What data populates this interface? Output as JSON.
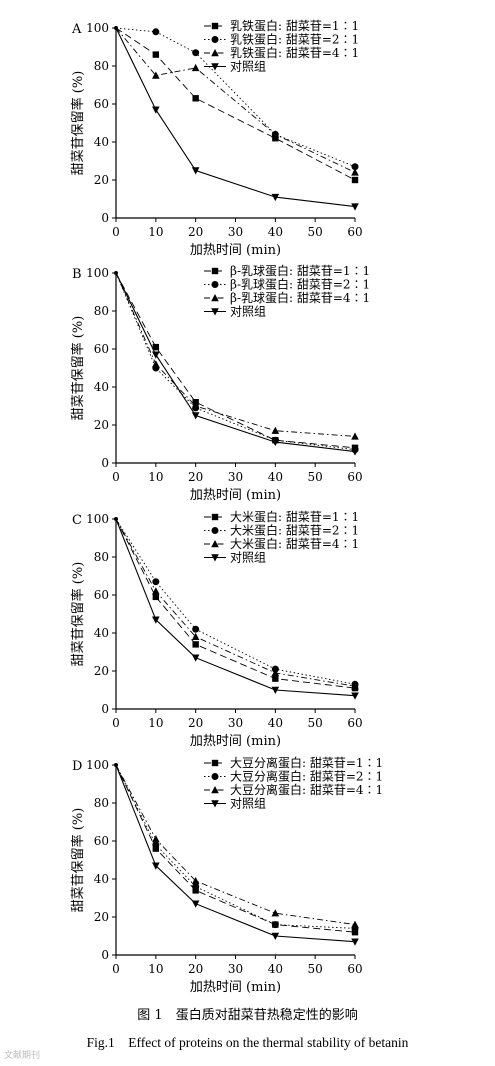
{
  "figure": {
    "caption_cn": "图 1　蛋白质对甜菜苷热稳定性的影响",
    "caption_en": "Fig.1　Effect of proteins on the thermal stability of betanin",
    "watermark": "文献期刊"
  },
  "chart_data": [
    {
      "type": "line",
      "panel": "A",
      "xlabel": "加热时间 (min)",
      "ylabel": "甜菜苷保留率 (%)",
      "x": [
        0,
        10,
        20,
        40,
        60
      ],
      "xticks": [
        "0",
        "10",
        "20",
        "30",
        "40",
        "50",
        "60"
      ],
      "yticks": [
        "0",
        "20",
        "40",
        "60",
        "80",
        "100"
      ],
      "xlim": [
        0,
        60
      ],
      "ylim": [
        0,
        100
      ],
      "grid": false,
      "legend_position": "top-right",
      "series": [
        {
          "name": "乳铁蛋白: 甜菜苷=1∶1",
          "values": [
            100,
            86,
            63,
            42,
            20
          ],
          "marker": "square",
          "dash": "dash"
        },
        {
          "name": "乳铁蛋白: 甜菜苷=2∶1",
          "values": [
            100,
            98,
            87,
            44,
            27
          ],
          "marker": "circle",
          "dash": "dot"
        },
        {
          "name": "乳铁蛋白: 甜菜苷=4∶1",
          "values": [
            100,
            75,
            79,
            44,
            24
          ],
          "marker": "triangle",
          "dash": "dashdot"
        },
        {
          "name": "对照组",
          "values": [
            100,
            57,
            25,
            11,
            6
          ],
          "marker": "triangle-down",
          "dash": "solid"
        }
      ]
    },
    {
      "type": "line",
      "panel": "B",
      "xlabel": "加热时间 (min)",
      "ylabel": "甜菜苷保留率 (%)",
      "x": [
        0,
        10,
        20,
        40,
        60
      ],
      "xticks": [
        "0",
        "10",
        "20",
        "30",
        "40",
        "50",
        "60"
      ],
      "yticks": [
        "0",
        "20",
        "40",
        "60",
        "80",
        "100"
      ],
      "xlim": [
        0,
        60
      ],
      "ylim": [
        0,
        100
      ],
      "grid": false,
      "legend_position": "top-right",
      "series": [
        {
          "name": "β-乳球蛋白: 甜菜苷=1∶1",
          "values": [
            100,
            61,
            32,
            12,
            8
          ],
          "marker": "square",
          "dash": "dash"
        },
        {
          "name": "β-乳球蛋白: 甜菜苷=2∶1",
          "values": [
            100,
            50,
            29,
            12,
            7
          ],
          "marker": "circle",
          "dash": "dot"
        },
        {
          "name": "β-乳球蛋白: 甜菜苷=4∶1",
          "values": [
            100,
            52,
            30,
            17,
            14
          ],
          "marker": "triangle",
          "dash": "dashdot"
        },
        {
          "name": "对照组",
          "values": [
            100,
            57,
            25,
            11,
            6
          ],
          "marker": "triangle-down",
          "dash": "solid"
        }
      ]
    },
    {
      "type": "line",
      "panel": "C",
      "xlabel": "加热时间 (min)",
      "ylabel": "甜菜苷保留率 (%)",
      "x": [
        0,
        10,
        20,
        40,
        60
      ],
      "xticks": [
        "0",
        "10",
        "20",
        "30",
        "40",
        "50",
        "60"
      ],
      "yticks": [
        "0",
        "20",
        "40",
        "60",
        "80",
        "100"
      ],
      "xlim": [
        0,
        60
      ],
      "ylim": [
        0,
        100
      ],
      "grid": false,
      "legend_position": "top-right",
      "series": [
        {
          "name": "大米蛋白: 甜菜苷=1∶1",
          "values": [
            100,
            59,
            34,
            16,
            11
          ],
          "marker": "square",
          "dash": "dash"
        },
        {
          "name": "大米蛋白: 甜菜苷=2∶1",
          "values": [
            100,
            67,
            42,
            21,
            13
          ],
          "marker": "circle",
          "dash": "dot"
        },
        {
          "name": "大米蛋白: 甜菜苷=4∶1",
          "values": [
            100,
            62,
            38,
            19,
            12
          ],
          "marker": "triangle",
          "dash": "dashdot"
        },
        {
          "name": "对照组",
          "values": [
            100,
            47,
            27,
            10,
            7
          ],
          "marker": "triangle-down",
          "dash": "solid"
        }
      ]
    },
    {
      "type": "line",
      "panel": "D",
      "xlabel": "加热时间 (min)",
      "ylabel": "甜菜苷保留率 (%)",
      "x": [
        0,
        10,
        20,
        40,
        60
      ],
      "xticks": [
        "0",
        "10",
        "20",
        "30",
        "40",
        "50",
        "60"
      ],
      "yticks": [
        "0",
        "20",
        "40",
        "60",
        "80",
        "100"
      ],
      "xlim": [
        0,
        60
      ],
      "ylim": [
        0,
        100
      ],
      "grid": false,
      "legend_position": "top-right",
      "series": [
        {
          "name": "大豆分离蛋白: 甜菜苷=1∶1",
          "values": [
            100,
            56,
            34,
            16,
            12
          ],
          "marker": "square",
          "dash": "dash"
        },
        {
          "name": "大豆分离蛋白: 甜菜苷=2∶1",
          "values": [
            100,
            58,
            36,
            16,
            14
          ],
          "marker": "circle",
          "dash": "dot"
        },
        {
          "name": "大豆分离蛋白: 甜菜苷=4∶1",
          "values": [
            100,
            61,
            39,
            22,
            16
          ],
          "marker": "triangle",
          "dash": "dashdot"
        },
        {
          "name": "对照组",
          "values": [
            100,
            47,
            27,
            10,
            7
          ],
          "marker": "triangle-down",
          "dash": "solid"
        }
      ]
    }
  ]
}
